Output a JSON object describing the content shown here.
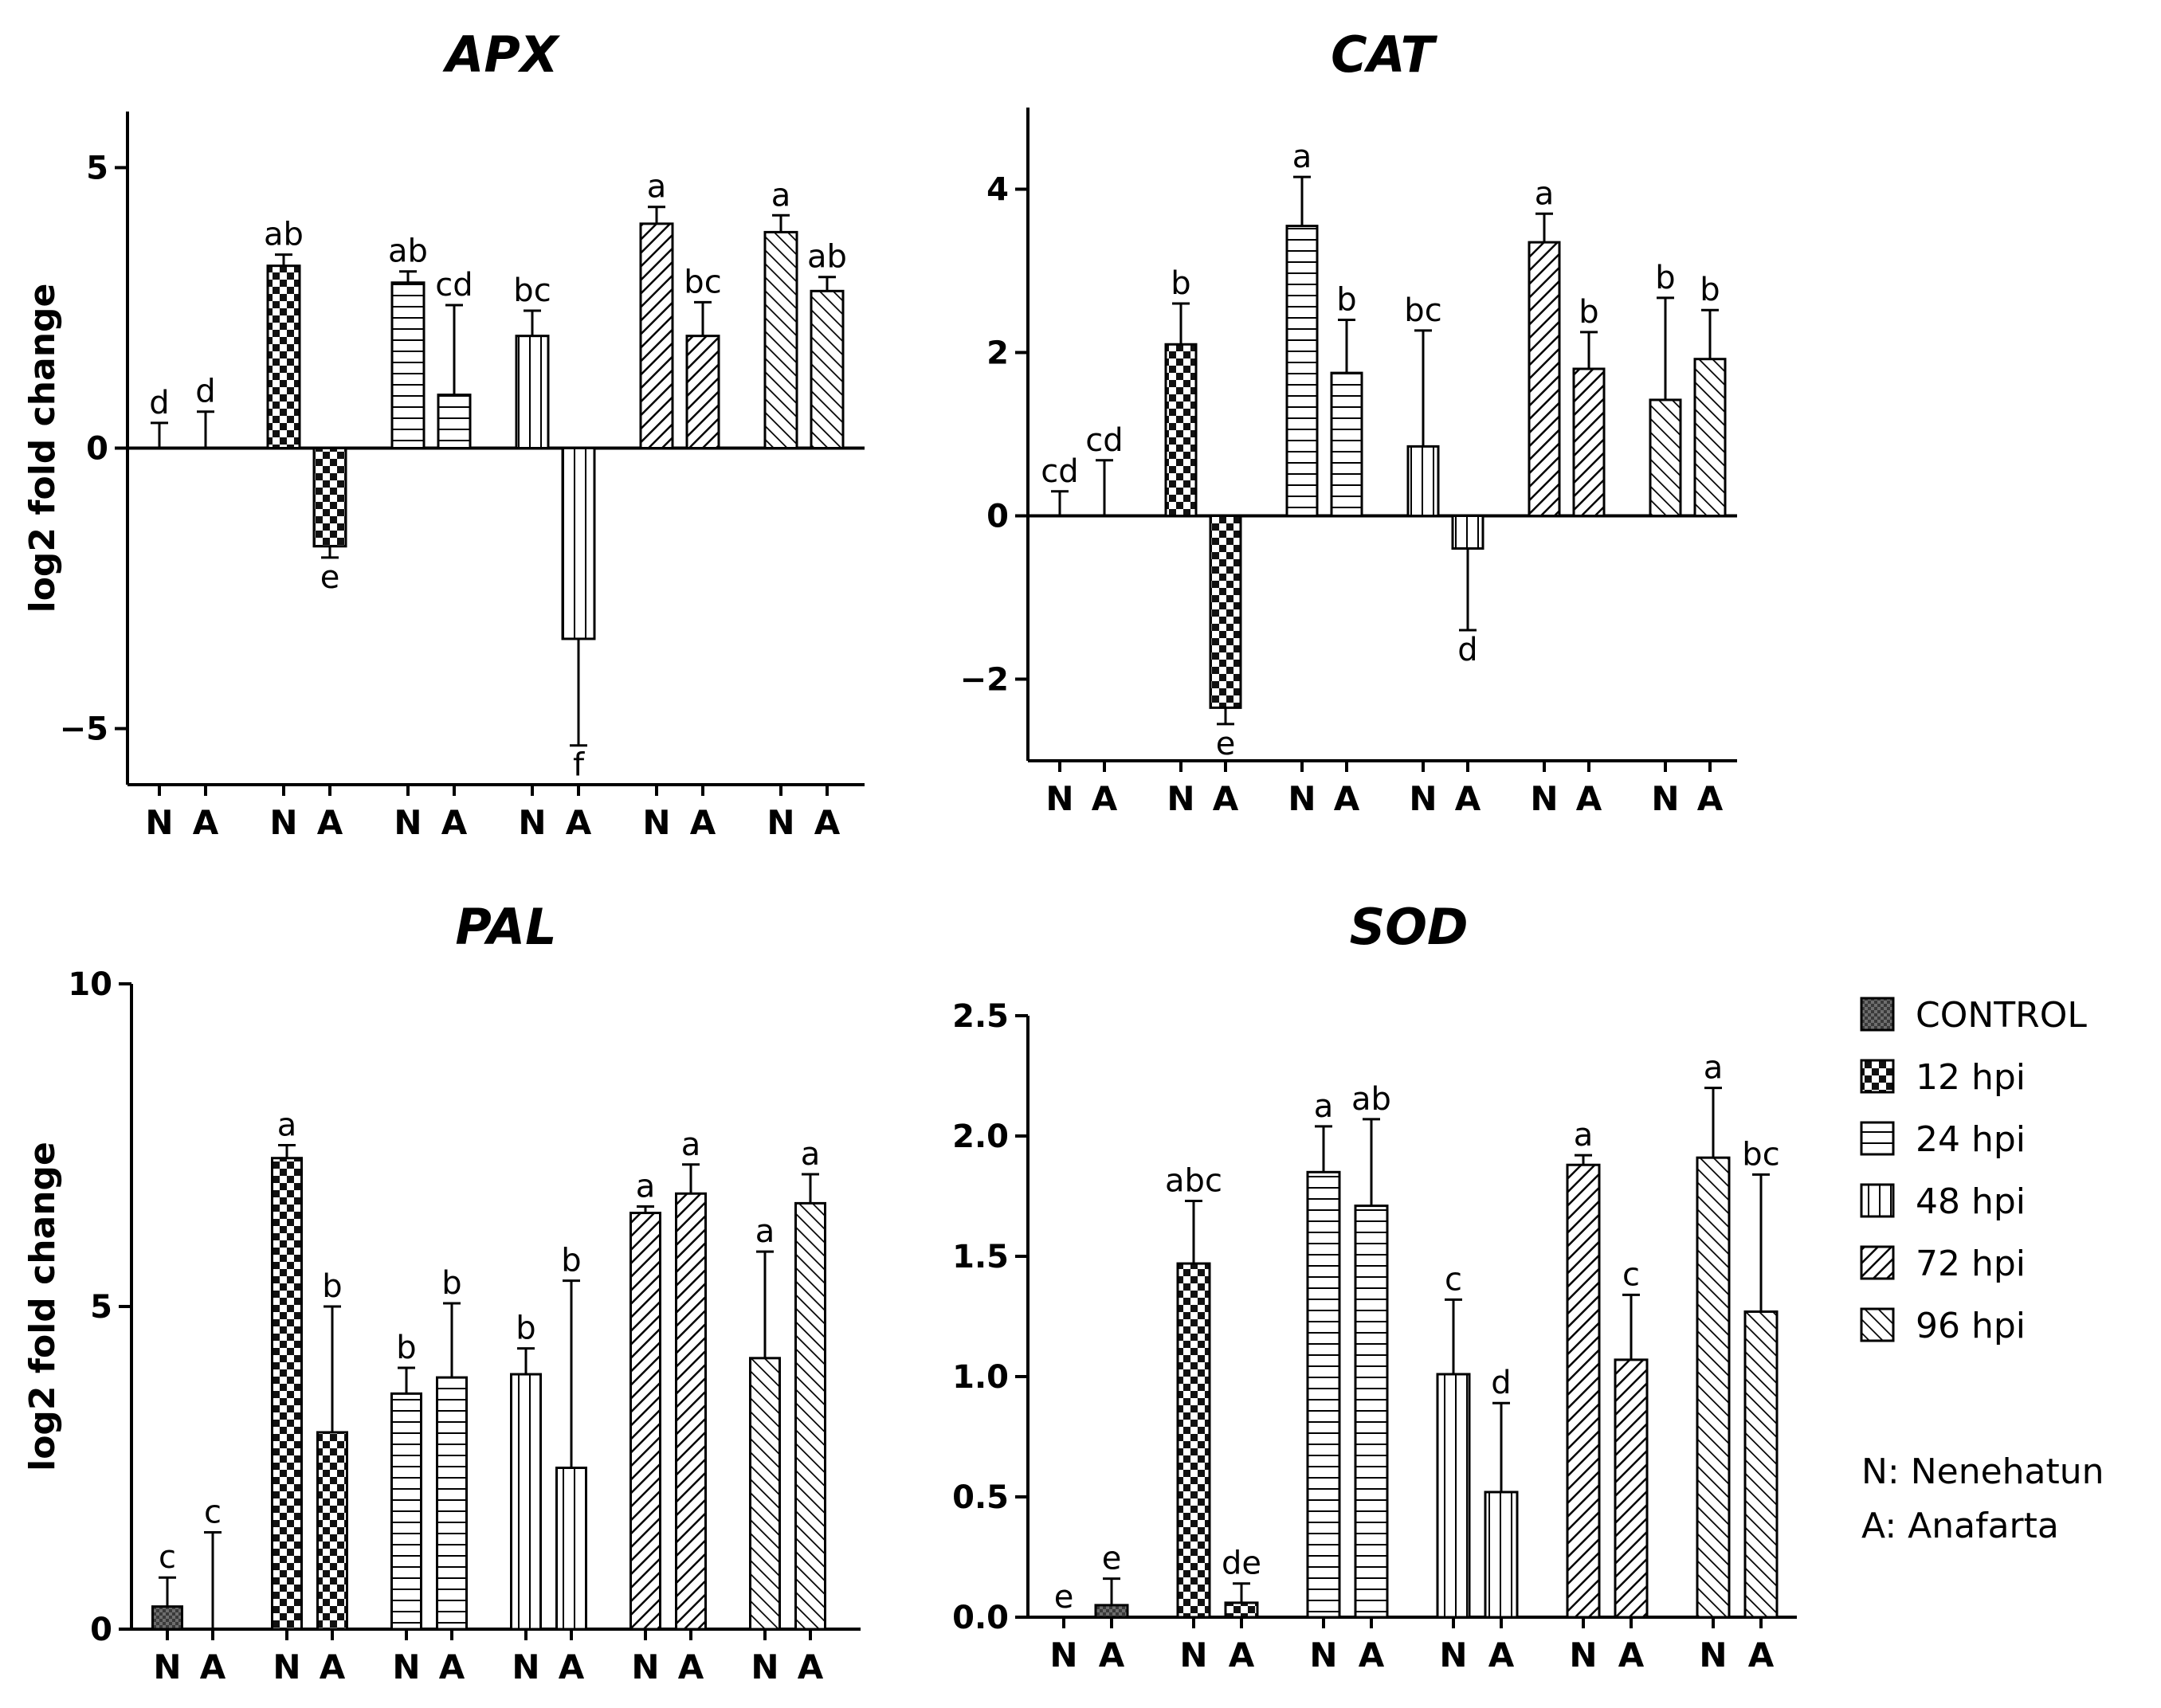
{
  "legend": {
    "items": [
      {
        "key": "control",
        "label": "CONTROL"
      },
      {
        "key": "h12",
        "label": "12 hpi"
      },
      {
        "key": "h24",
        "label": "24 hpi"
      },
      {
        "key": "h48",
        "label": "48 hpi"
      },
      {
        "key": "h72",
        "label": "72 hpi"
      },
      {
        "key": "h96",
        "label": "96 hpi"
      }
    ],
    "notes": [
      "N: Nenehatun",
      "A: Anafarta"
    ]
  },
  "chart_data": [
    {
      "type": "bar",
      "title": "APX",
      "ylabel": "log2 fold change",
      "ylim": [
        -6,
        6
      ],
      "yticks": [
        -5,
        0,
        5
      ],
      "categories": [
        "N",
        "A",
        "N",
        "A",
        "N",
        "A",
        "N",
        "A",
        "N",
        "A",
        "N",
        "A"
      ],
      "groups": [
        "control",
        "control",
        "h12",
        "h12",
        "h24",
        "h24",
        "h48",
        "h48",
        "h72",
        "h72",
        "h96",
        "h96"
      ],
      "values": [
        0,
        0,
        3.25,
        -1.75,
        2.95,
        0.95,
        2.0,
        -3.4,
        4.0,
        2.0,
        3.85,
        2.8
      ],
      "errors": [
        0.45,
        0.65,
        0.2,
        0.2,
        0.2,
        1.6,
        0.45,
        1.9,
        0.3,
        0.6,
        0.3,
        0.25
      ],
      "letters": [
        "d",
        "d",
        "ab",
        "e",
        "ab",
        "cd",
        "bc",
        "f",
        "a",
        "bc",
        "a",
        "ab"
      ]
    },
    {
      "type": "bar",
      "title": "CAT",
      "ylabel": "",
      "ylim": [
        -3,
        5
      ],
      "yticks": [
        -2,
        0,
        2,
        4
      ],
      "categories": [
        "N",
        "A",
        "N",
        "A",
        "N",
        "A",
        "N",
        "A",
        "N",
        "A",
        "N",
        "A"
      ],
      "groups": [
        "control",
        "control",
        "h12",
        "h12",
        "h24",
        "h24",
        "h48",
        "h48",
        "h72",
        "h72",
        "h96",
        "h96"
      ],
      "values": [
        0,
        0,
        2.1,
        -2.35,
        3.55,
        1.75,
        0.85,
        -0.4,
        3.35,
        1.8,
        1.42,
        1.92
      ],
      "errors": [
        0.3,
        0.68,
        0.5,
        0.2,
        0.6,
        0.65,
        1.42,
        1.0,
        0.35,
        0.45,
        1.25,
        0.6
      ],
      "letters": [
        "cd",
        "cd",
        "b",
        "e",
        "a",
        "b",
        "bc",
        "d",
        "a",
        "b",
        "b",
        "b"
      ]
    },
    {
      "type": "bar",
      "title": "PAL",
      "ylabel": "log2 fold change",
      "ylim": [
        0,
        10
      ],
      "yticks": [
        0,
        5,
        10
      ],
      "categories": [
        "N",
        "A",
        "N",
        "A",
        "N",
        "A",
        "N",
        "A",
        "N",
        "A",
        "N",
        "A"
      ],
      "groups": [
        "control",
        "control",
        "h12",
        "h12",
        "h24",
        "h24",
        "h48",
        "h48",
        "h72",
        "h72",
        "h96",
        "h96"
      ],
      "values": [
        0.35,
        0,
        7.3,
        3.05,
        3.65,
        3.9,
        3.95,
        2.5,
        6.45,
        6.75,
        4.2,
        6.6
      ],
      "errors": [
        0.45,
        1.5,
        0.2,
        1.95,
        0.4,
        1.15,
        0.4,
        2.9,
        0.1,
        0.45,
        1.65,
        0.45
      ],
      "letters": [
        "c",
        "c",
        "a",
        "b",
        "b",
        "b",
        "b",
        "b",
        "a",
        "a",
        "a",
        "a"
      ]
    },
    {
      "type": "bar",
      "title": "SOD",
      "ylabel": "",
      "ylim": [
        0,
        2.5
      ],
      "yticks": [
        "0.0",
        "0.5",
        "1.0",
        "1.5",
        "2.0",
        "2.5"
      ],
      "categories": [
        "N",
        "A",
        "N",
        "A",
        "N",
        "A",
        "N",
        "A",
        "N",
        "A",
        "N",
        "A"
      ],
      "groups": [
        "control",
        "control",
        "h12",
        "h12",
        "h24",
        "h24",
        "h48",
        "h48",
        "h72",
        "h72",
        "h96",
        "h96"
      ],
      "values": [
        0,
        0.05,
        1.47,
        0.06,
        1.85,
        1.71,
        1.01,
        0.52,
        1.88,
        1.07,
        1.91,
        1.27
      ],
      "errors": [
        0,
        0.11,
        0.26,
        0.08,
        0.19,
        0.36,
        0.31,
        0.37,
        0.04,
        0.27,
        0.29,
        0.57
      ],
      "letters": [
        "e",
        "e",
        "abc",
        "de",
        "a",
        "ab",
        "c",
        "d",
        "a",
        "c",
        "a",
        "bc"
      ]
    }
  ]
}
